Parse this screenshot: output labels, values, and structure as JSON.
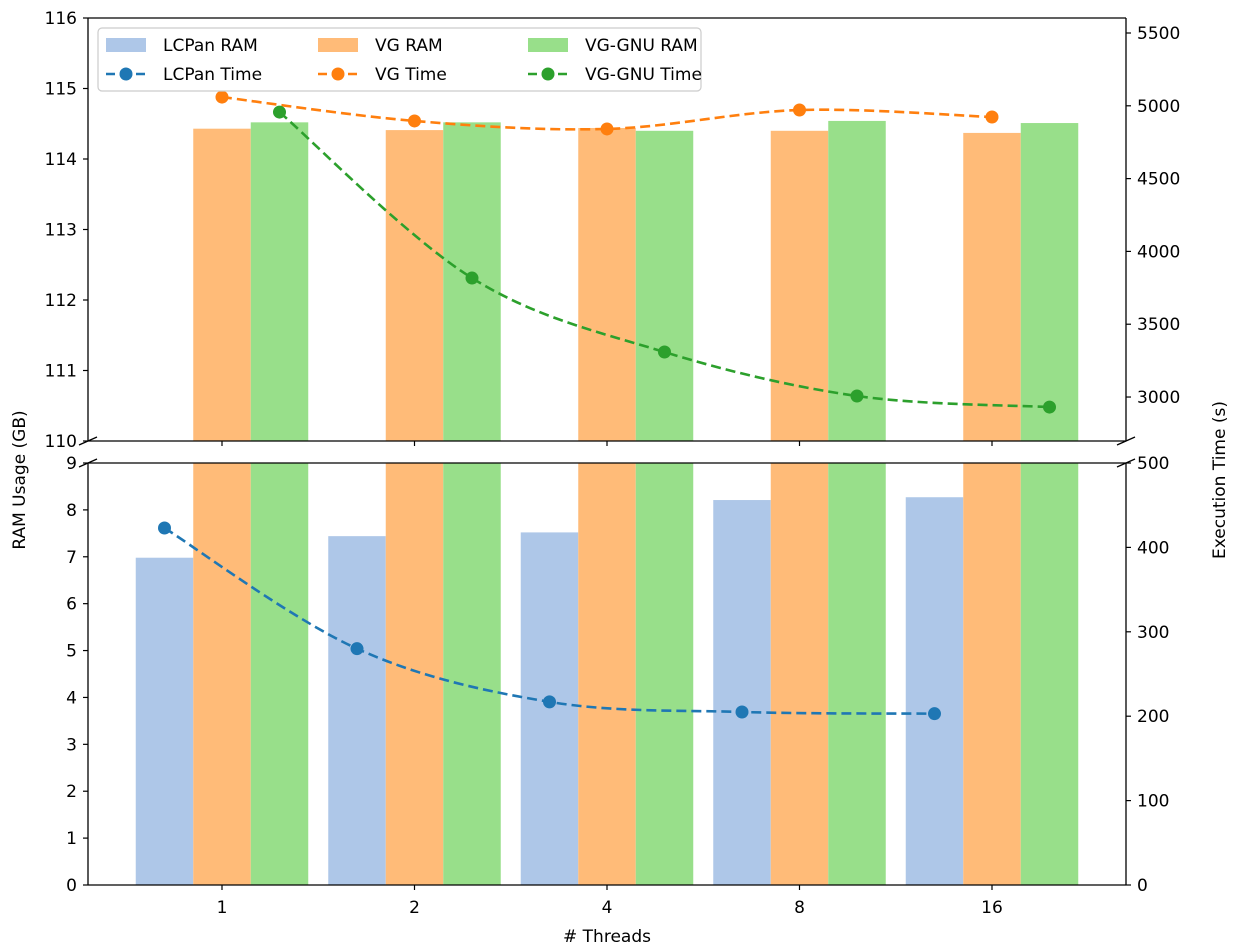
{
  "chart_data": {
    "type": "bar",
    "title": "",
    "xlabel": "# Threads",
    "ylabel_left": "RAM Usage (GB)",
    "ylabel_right": "Execution Time (s)",
    "categories": [
      "1",
      "2",
      "4",
      "8",
      "16"
    ],
    "broken_axis": true,
    "panels": {
      "top": {
        "ram_ylim": [
          110,
          116
        ],
        "ram_ticks": [
          110,
          111,
          112,
          113,
          114,
          115,
          116
        ],
        "time_ylim": [
          2698,
          5603
        ],
        "time_ticks": [
          3000,
          3500,
          4000,
          4500,
          5000,
          5500
        ]
      },
      "bottom": {
        "ram_ylim": [
          0,
          9
        ],
        "ram_ticks": [
          0,
          1,
          2,
          3,
          4,
          5,
          6,
          7,
          8,
          9
        ],
        "time_ylim": [
          0,
          500
        ],
        "time_ticks": [
          0,
          100,
          200,
          300,
          400,
          500
        ]
      }
    },
    "bar_series": [
      {
        "name": "LCPan RAM",
        "color": "#aec7e8",
        "values": [
          6.98,
          7.44,
          7.52,
          8.21,
          8.27
        ]
      },
      {
        "name": "VG RAM",
        "color": "#ffbb78",
        "values": [
          114.43,
          114.41,
          114.44,
          114.4,
          114.37
        ]
      },
      {
        "name": "VG-GNU RAM",
        "color": "#98df8a",
        "values": [
          114.52,
          114.52,
          114.4,
          114.54,
          114.51
        ]
      }
    ],
    "line_series": [
      {
        "name": "LCPan Time",
        "color": "#1f77b4",
        "offset": -1,
        "values": [
          423,
          280,
          217,
          205,
          203
        ]
      },
      {
        "name": "VG Time",
        "color": "#ff7f0e",
        "offset": 0,
        "values": [
          5060,
          4896,
          4841,
          4971,
          4923
        ]
      },
      {
        "name": "VG-GNU Time",
        "color": "#2ca02c",
        "offset": 1,
        "values": [
          4957,
          3817,
          3309,
          3007,
          2931
        ]
      }
    ],
    "legend": {
      "placement": "top-left",
      "columns": 3,
      "entries": [
        "LCPan RAM",
        "VG RAM",
        "VG-GNU RAM",
        "LCPan Time",
        "VG Time",
        "VG-GNU Time"
      ]
    },
    "grid": false
  }
}
